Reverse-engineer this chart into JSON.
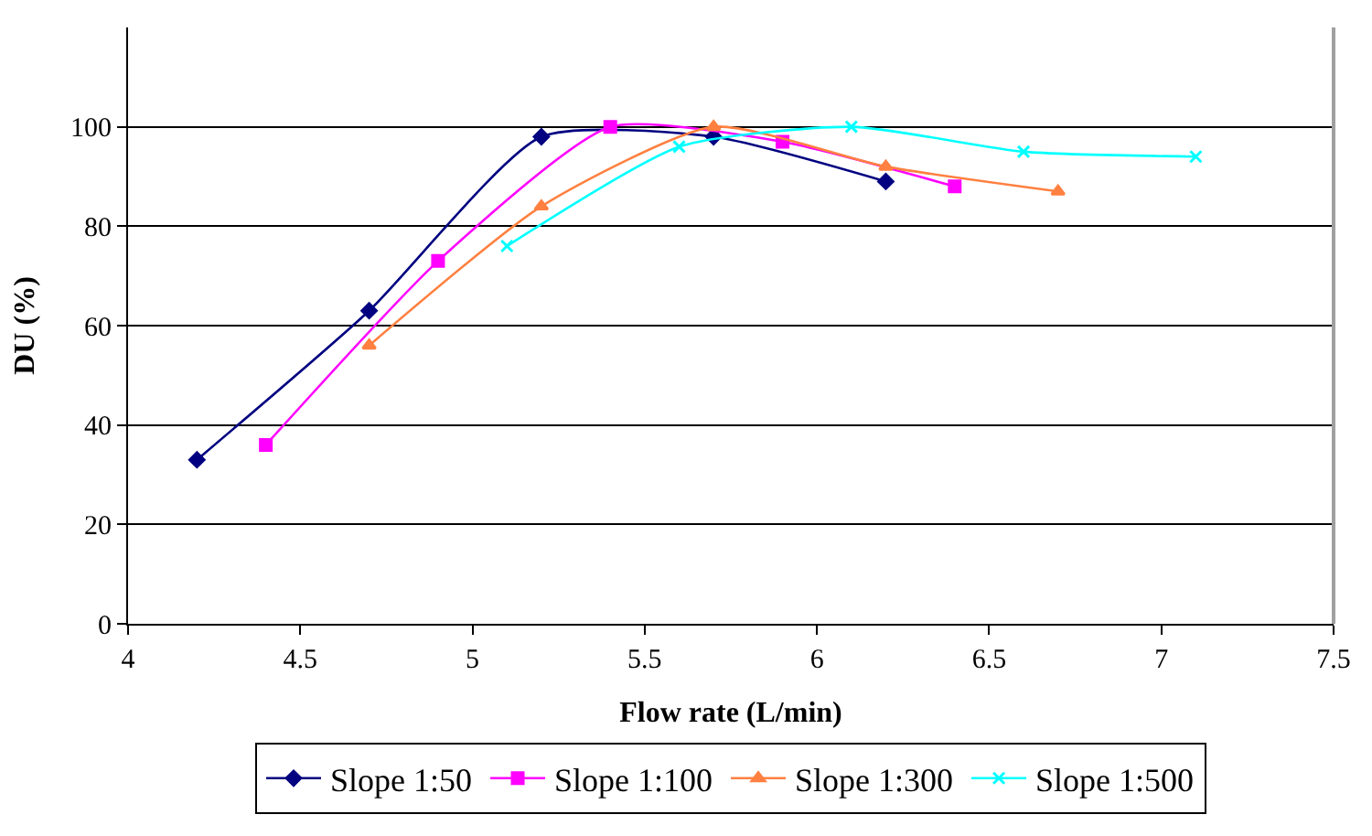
{
  "chart_data": {
    "type": "line",
    "xlabel": "Flow rate (L/min)",
    "ylabel": "DU (%)",
    "xlim": [
      4,
      7.5
    ],
    "xticks": [
      4,
      4.5,
      5,
      5.5,
      6,
      6.5,
      7,
      7.5
    ],
    "ylim": [
      0,
      120
    ],
    "yticks": [
      0,
      20,
      40,
      60,
      80,
      100
    ],
    "grid": "y",
    "legend": "bottom",
    "series": [
      {
        "name": "Slope 1:50",
        "color": "#000080",
        "marker": "diamond",
        "x": [
          4.2,
          4.7,
          5.2,
          5.7,
          6.2
        ],
        "values": [
          33,
          63,
          98,
          98,
          89
        ]
      },
      {
        "name": "Slope 1:100",
        "color": "#ff00ff",
        "marker": "square",
        "x": [
          4.4,
          4.9,
          5.4,
          5.9,
          6.4
        ],
        "values": [
          36,
          73,
          100,
          97,
          88
        ]
      },
      {
        "name": "Slope 1:300",
        "color": "#ff8040",
        "marker": "triangle",
        "x": [
          4.7,
          5.2,
          5.7,
          6.2,
          6.7
        ],
        "values": [
          56,
          84,
          100,
          92,
          87
        ]
      },
      {
        "name": "Slope 1:500",
        "color": "#00ffff",
        "marker": "cross",
        "x": [
          5.1,
          5.6,
          6.1,
          6.6,
          7.1
        ],
        "values": [
          76,
          96,
          100,
          95,
          94
        ]
      }
    ]
  }
}
